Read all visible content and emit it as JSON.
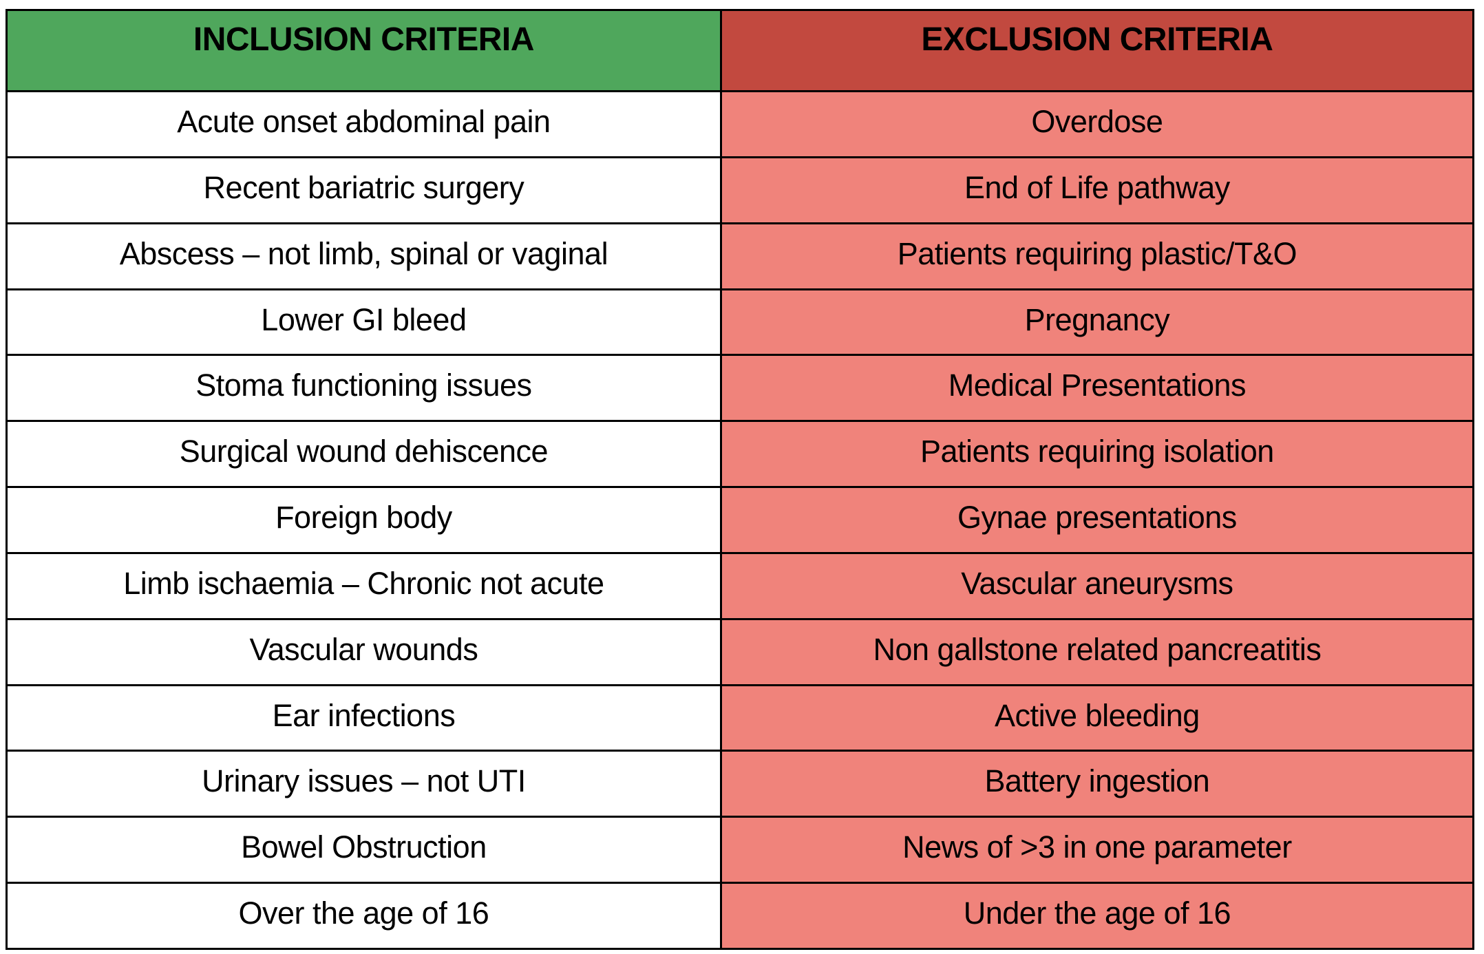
{
  "table": {
    "columns": [
      {
        "id": "inclusion",
        "label": "INCLUSION CRITERIA"
      },
      {
        "id": "exclusion",
        "label": "EXCLUSION CRITERIA"
      }
    ],
    "rows": [
      {
        "inclusion": "Acute onset abdominal pain",
        "exclusion": "Overdose"
      },
      {
        "inclusion": "Recent bariatric surgery",
        "exclusion": "End of Life pathway"
      },
      {
        "inclusion": "Abscess – not limb, spinal or vaginal",
        "exclusion": "Patients requiring plastic/T&O"
      },
      {
        "inclusion": "Lower GI bleed",
        "exclusion": "Pregnancy"
      },
      {
        "inclusion": "Stoma functioning issues",
        "exclusion": "Medical Presentations"
      },
      {
        "inclusion": "Surgical wound dehiscence",
        "exclusion": "Patients requiring isolation"
      },
      {
        "inclusion": "Foreign body",
        "exclusion": "Gynae presentations"
      },
      {
        "inclusion": "Limb ischaemia – Chronic not acute",
        "exclusion": "Vascular aneurysms"
      },
      {
        "inclusion": "Vascular wounds",
        "exclusion": "Non gallstone related pancreatitis"
      },
      {
        "inclusion": "Ear infections",
        "exclusion": "Active bleeding"
      },
      {
        "inclusion": "Urinary issues – not UTI",
        "exclusion": "Battery ingestion"
      },
      {
        "inclusion": "Bowel Obstruction",
        "exclusion": "News of >3 in one parameter"
      },
      {
        "inclusion": "Over the age of 16",
        "exclusion": "Under the age of 16"
      }
    ]
  },
  "colors": {
    "inclusion_header_bg": "#4FA75C",
    "exclusion_header_bg": "#C2493F",
    "inclusion_cell_bg": "#FFFFFF",
    "exclusion_cell_bg": "#F0837B",
    "border": "#000000",
    "text": "#000000"
  }
}
